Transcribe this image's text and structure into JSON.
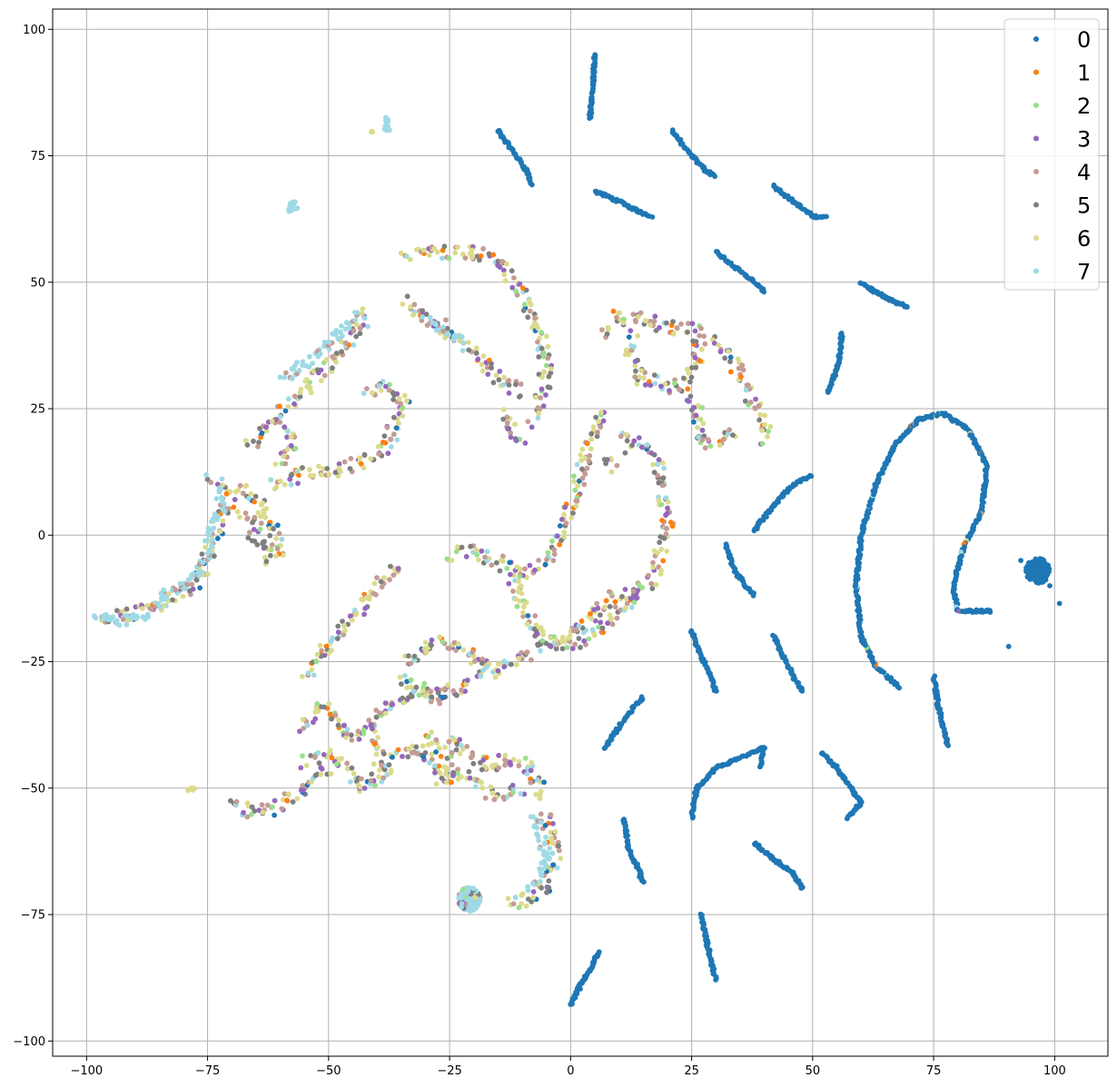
{
  "chart_data": {
    "type": "scatter",
    "title": "",
    "xlabel": "",
    "ylabel": "",
    "xlim": [
      -107,
      111
    ],
    "ylim": [
      -103,
      104
    ],
    "grid": true,
    "legend_placement": "top-right",
    "x_ticks": [
      -100,
      -75,
      -50,
      -25,
      0,
      25,
      50,
      75,
      100
    ],
    "y_ticks": [
      -100,
      -75,
      -50,
      -25,
      0,
      25,
      50,
      75,
      100
    ],
    "x_tick_labels": [
      "−100",
      "−75",
      "−50",
      "−25",
      "0",
      "25",
      "50",
      "75",
      "100"
    ],
    "y_tick_labels": [
      "−100",
      "−75",
      "−50",
      "−25",
      "0",
      "25",
      "50",
      "75",
      "100"
    ],
    "series": [
      {
        "name": "0",
        "color": "#1f77b4"
      },
      {
        "name": "1",
        "color": "#ff7f0e"
      },
      {
        "name": "2",
        "color": "#98df8a"
      },
      {
        "name": "3",
        "color": "#9467bd"
      },
      {
        "name": "4",
        "color": "#c49c94"
      },
      {
        "name": "5",
        "color": "#7f7f7f"
      },
      {
        "name": "6",
        "color": "#dbdb8d"
      },
      {
        "name": "7",
        "color": "#9edae5"
      }
    ],
    "blue_segments": [
      [
        [
          5,
          95
        ],
        [
          4.5,
          88
        ],
        [
          4,
          82
        ]
      ],
      [
        [
          -15,
          80
        ],
        [
          -12,
          76
        ],
        [
          -9,
          72
        ],
        [
          -8,
          69
        ]
      ],
      [
        [
          21,
          80
        ],
        [
          24,
          76
        ],
        [
          28,
          72
        ],
        [
          30,
          71
        ]
      ],
      [
        [
          5,
          68
        ],
        [
          10,
          66
        ],
        [
          14,
          64
        ],
        [
          17,
          63
        ]
      ],
      [
        [
          42,
          69
        ],
        [
          46,
          66
        ],
        [
          50,
          63
        ],
        [
          53,
          63
        ]
      ],
      [
        [
          30,
          56
        ],
        [
          34,
          53
        ],
        [
          38,
          50
        ],
        [
          40,
          48
        ]
      ],
      [
        [
          60,
          50
        ],
        [
          63,
          48
        ],
        [
          67,
          46
        ],
        [
          70,
          45
        ]
      ],
      [
        [
          56,
          40
        ],
        [
          55.5,
          35
        ],
        [
          54,
          30
        ],
        [
          53,
          28
        ]
      ],
      [
        [
          38,
          1
        ],
        [
          42,
          6
        ],
        [
          46,
          10
        ],
        [
          50,
          12
        ]
      ],
      [
        [
          32,
          -2
        ],
        [
          34,
          -7
        ],
        [
          36,
          -10
        ],
        [
          38,
          -12
        ]
      ],
      [
        [
          25,
          -19
        ],
        [
          27,
          -24
        ],
        [
          29,
          -28
        ],
        [
          30,
          -31
        ]
      ],
      [
        [
          42,
          -20
        ],
        [
          44,
          -24
        ],
        [
          46,
          -28
        ],
        [
          48,
          -31
        ]
      ],
      [
        [
          75,
          -28
        ],
        [
          76,
          -34
        ],
        [
          77,
          -38
        ],
        [
          78,
          -42
        ]
      ],
      [
        [
          7,
          -42
        ],
        [
          10,
          -38
        ],
        [
          13,
          -34
        ],
        [
          15,
          -32
        ]
      ],
      [
        [
          25,
          -56
        ],
        [
          26,
          -50
        ],
        [
          30,
          -46
        ],
        [
          35,
          -44
        ],
        [
          40,
          -42
        ],
        [
          39,
          -46
        ]
      ],
      [
        [
          52,
          -43
        ],
        [
          55,
          -46
        ],
        [
          58,
          -50
        ],
        [
          60,
          -53
        ],
        [
          57,
          -56
        ]
      ],
      [
        [
          38,
          -61
        ],
        [
          42,
          -64
        ],
        [
          46,
          -67
        ],
        [
          48,
          -70
        ]
      ],
      [
        [
          11,
          -56
        ],
        [
          12,
          -62
        ],
        [
          14,
          -66
        ],
        [
          15,
          -69
        ]
      ],
      [
        [
          27,
          -75
        ],
        [
          28,
          -80
        ],
        [
          29,
          -84
        ],
        [
          30,
          -88
        ]
      ],
      [
        [
          0,
          -93
        ],
        [
          2,
          -89
        ],
        [
          4,
          -86
        ],
        [
          6,
          -82
        ]
      ],
      [
        [
          68,
          -30
        ],
        [
          63,
          -26
        ],
        [
          60,
          -20
        ],
        [
          59,
          -10
        ],
        [
          60,
          0
        ],
        [
          63,
          10
        ],
        [
          67,
          18
        ],
        [
          72,
          23
        ],
        [
          77,
          24
        ],
        [
          82,
          21
        ],
        [
          86,
          14
        ],
        [
          85,
          5
        ],
        [
          81,
          -3
        ],
        [
          79,
          -10
        ],
        [
          80,
          -15
        ],
        [
          84,
          -15
        ],
        [
          87,
          -15
        ]
      ]
    ],
    "blue_cluster": {
      "x": 96.5,
      "y": -7,
      "r": 2.5
    },
    "blue_outliers": [
      [
        90.5,
        -22
      ],
      [
        101,
        -13.5
      ],
      [
        93,
        -5
      ],
      [
        99,
        -10
      ]
    ],
    "mixed_segments": [
      [
        [
          -98,
          -16
        ],
        [
          -92,
          -16
        ],
        [
          -86,
          -14
        ],
        [
          -80,
          -11
        ],
        [
          -76,
          -8
        ],
        [
          -74,
          -2
        ],
        [
          -72,
          4
        ],
        [
          -70,
          8
        ],
        [
          -75,
          11
        ]
      ],
      [
        [
          -66,
          18
        ],
        [
          -62,
          22
        ],
        [
          -58,
          26
        ],
        [
          -55,
          29
        ],
        [
          -52,
          32
        ],
        [
          -48,
          36
        ],
        [
          -44,
          40
        ],
        [
          -42,
          44
        ]
      ],
      [
        [
          -68,
          10
        ],
        [
          -64,
          6
        ],
        [
          -62,
          2
        ],
        [
          -60,
          -2
        ],
        [
          -62,
          -5
        ],
        [
          -65,
          0
        ],
        [
          -68,
          5
        ]
      ],
      [
        [
          -62,
          10
        ],
        [
          -55,
          12
        ],
        [
          -48,
          13
        ],
        [
          -42,
          15
        ],
        [
          -38,
          18
        ],
        [
          -36,
          22
        ],
        [
          -34,
          26
        ],
        [
          -38,
          30
        ],
        [
          -42,
          28
        ]
      ],
      [
        [
          -60,
          14
        ],
        [
          -58,
          18
        ],
        [
          -58,
          22
        ]
      ],
      [
        [
          -34,
          46
        ],
        [
          -30,
          43
        ],
        [
          -26,
          41
        ],
        [
          -22,
          38
        ],
        [
          -18,
          34
        ],
        [
          -14,
          30
        ],
        [
          -10,
          28
        ]
      ],
      [
        [
          -34,
          55
        ],
        [
          -28,
          56
        ],
        [
          -22,
          56
        ],
        [
          -16,
          55
        ],
        [
          -13,
          52
        ],
        [
          -10,
          48
        ],
        [
          -8,
          44
        ],
        [
          -6,
          38
        ],
        [
          -5,
          32
        ],
        [
          -6,
          28
        ],
        [
          -7,
          24
        ],
        [
          -8,
          22
        ]
      ],
      [
        [
          -26,
          40
        ],
        [
          -28,
          42
        ]
      ],
      [
        [
          -14,
          24
        ],
        [
          -12,
          20
        ],
        [
          -10,
          18
        ]
      ],
      [
        [
          7,
          40
        ],
        [
          10,
          43
        ],
        [
          15,
          43
        ],
        [
          20,
          41
        ],
        [
          25,
          41
        ],
        [
          27,
          39
        ],
        [
          26,
          35
        ],
        [
          24,
          30
        ],
        [
          20,
          29
        ],
        [
          15,
          31
        ],
        [
          12,
          36
        ],
        [
          13,
          40
        ]
      ],
      [
        [
          30,
          38
        ],
        [
          34,
          34
        ],
        [
          36,
          30
        ],
        [
          38,
          26
        ],
        [
          40,
          22
        ],
        [
          40,
          18
        ]
      ],
      [
        [
          25,
          28
        ],
        [
          27,
          22
        ],
        [
          28,
          18
        ],
        [
          34,
          20
        ]
      ],
      [
        [
          7,
          24
        ],
        [
          4,
          18
        ],
        [
          2,
          12
        ],
        [
          0,
          6
        ],
        [
          -2,
          0
        ],
        [
          -5,
          -5
        ],
        [
          -10,
          -8
        ],
        [
          -15,
          -5
        ],
        [
          -20,
          -3
        ],
        [
          -25,
          -4
        ]
      ],
      [
        [
          -12,
          -8
        ],
        [
          -10,
          -15
        ],
        [
          -6,
          -20
        ],
        [
          -2,
          -22
        ],
        [
          2,
          -22
        ],
        [
          6,
          -18
        ],
        [
          10,
          -15
        ],
        [
          14,
          -12
        ],
        [
          17,
          -8
        ],
        [
          19,
          -2
        ],
        [
          20,
          2
        ],
        [
          19,
          8
        ],
        [
          18,
          14
        ],
        [
          15,
          18
        ],
        [
          10,
          20
        ]
      ],
      [
        [
          10,
          15
        ],
        [
          7,
          13
        ]
      ],
      [
        [
          -35,
          -6
        ],
        [
          -38,
          -8
        ],
        [
          -42,
          -12
        ],
        [
          -45,
          -16
        ],
        [
          -48,
          -20
        ],
        [
          -52,
          -24
        ],
        [
          -55,
          -28
        ]
      ],
      [
        [
          -35,
          -25
        ],
        [
          -28,
          -21
        ],
        [
          -22,
          -22
        ],
        [
          -16,
          -27
        ],
        [
          -12,
          -25
        ],
        [
          -6,
          -22
        ],
        [
          -2,
          -21
        ],
        [
          2,
          -17
        ],
        [
          6,
          -14
        ],
        [
          10,
          -12
        ],
        [
          14,
          -12
        ]
      ],
      [
        [
          -35,
          -28
        ],
        [
          -28,
          -32
        ],
        [
          -22,
          -30
        ],
        [
          -18,
          -26
        ]
      ],
      [
        [
          -56,
          -38
        ],
        [
          -52,
          -34
        ],
        [
          -48,
          -36
        ],
        [
          -46,
          -40
        ],
        [
          -42,
          -38
        ],
        [
          -38,
          -34
        ],
        [
          -34,
          -32
        ],
        [
          -30,
          -31
        ],
        [
          -26,
          -33
        ]
      ],
      [
        [
          -55,
          -45
        ],
        [
          -50,
          -43
        ],
        [
          -46,
          -46
        ],
        [
          -44,
          -50
        ],
        [
          -40,
          -48
        ],
        [
          -36,
          -44
        ],
        [
          -32,
          -42
        ],
        [
          -28,
          -46
        ],
        [
          -25,
          -48
        ]
      ],
      [
        [
          -25,
          -40
        ],
        [
          -20,
          -44
        ],
        [
          -16,
          -46
        ],
        [
          -12,
          -44
        ],
        [
          -8,
          -46
        ],
        [
          -6,
          -52
        ]
      ],
      [
        [
          -22,
          -48
        ],
        [
          -18,
          -50
        ],
        [
          -14,
          -52
        ],
        [
          -10,
          -50
        ]
      ],
      [
        [
          -70,
          -53
        ],
        [
          -66,
          -55
        ],
        [
          -62,
          -54
        ],
        [
          -58,
          -52
        ],
        [
          -55,
          -50
        ],
        [
          -52,
          -48
        ],
        [
          -50,
          -46
        ]
      ],
      [
        [
          -6,
          -55
        ],
        [
          -4,
          -58
        ],
        [
          -3,
          -62
        ],
        [
          -4,
          -66
        ],
        [
          -6,
          -70
        ],
        [
          -10,
          -72
        ],
        [
          -13,
          -73
        ]
      ],
      [
        [
          -40,
          -38
        ],
        [
          -40,
          -44
        ],
        [
          -38,
          -46
        ]
      ],
      [
        [
          -30,
          -40
        ],
        [
          -26,
          -42
        ],
        [
          -24,
          -48
        ],
        [
          -28,
          -48
        ]
      ]
    ],
    "cyan_segments": [
      [
        [
          -98,
          -16
        ],
        [
          -92,
          -17
        ],
        [
          -88,
          -16
        ],
        [
          -84,
          -12
        ],
        [
          -78,
          -9
        ],
        [
          -75,
          -3
        ],
        [
          -74,
          2
        ],
        [
          -72,
          6
        ],
        [
          -73,
          10
        ]
      ],
      [
        [
          -60,
          31
        ],
        [
          -56,
          33
        ],
        [
          -52,
          36
        ],
        [
          -48,
          40
        ],
        [
          -45,
          43
        ],
        [
          -43,
          44
        ]
      ],
      [
        [
          -30,
          43
        ],
        [
          -26,
          40
        ],
        [
          -22,
          38
        ]
      ],
      [
        [
          -8,
          -55
        ],
        [
          -6,
          -60
        ],
        [
          -5,
          -64
        ],
        [
          -7,
          -68
        ],
        [
          -9,
          -70
        ]
      ]
    ],
    "cyan_cluster": {
      "x": -21,
      "y": -72,
      "r": 2.4
    },
    "cyan_islands": [
      [
        -57,
        65
      ],
      [
        -57.5,
        66
      ],
      [
        -58,
        64.5
      ],
      [
        -38,
        82
      ],
      [
        -38,
        80.5
      ]
    ],
    "tan_islands": [
      [
        -78,
        -50
      ],
      [
        -79,
        -50.5
      ],
      [
        -41,
        80
      ]
    ]
  }
}
